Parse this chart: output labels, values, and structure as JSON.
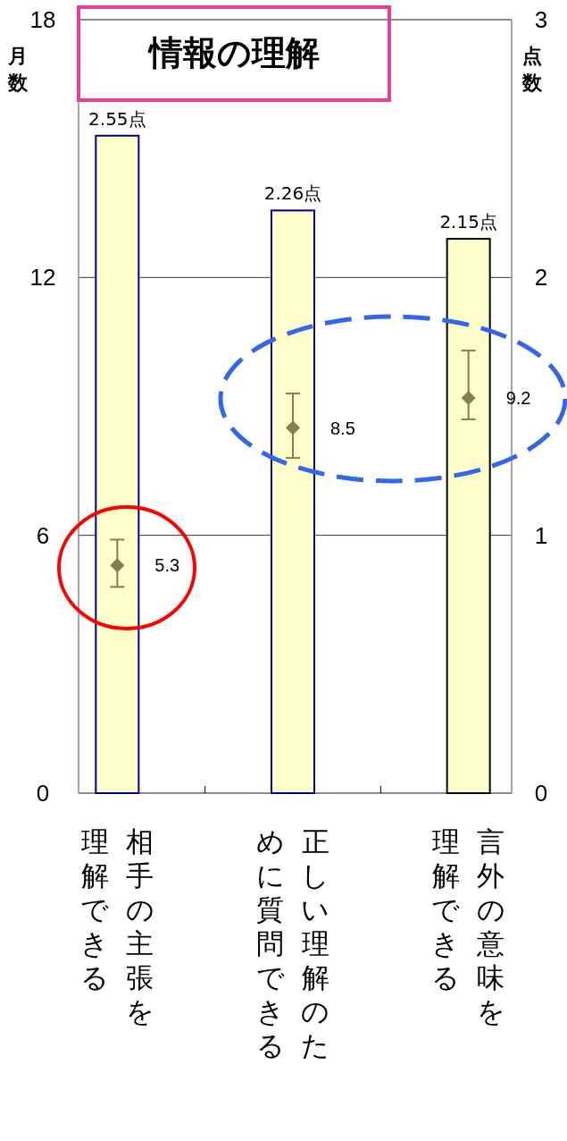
{
  "chart_data": {
    "type": "bar",
    "title": "情報の理解",
    "ylabel": "月数",
    "y2label": "点数",
    "categories": [
      "相手の主張を理解できる",
      "正しい理解のために質問できる",
      "言外の意味を理解できる"
    ],
    "series": [
      {
        "axis": "y2",
        "color": "#ffffcc",
        "values": [
          2.55,
          2.26,
          2.15
        ],
        "value_labels": [
          "2.55点",
          "2.26点",
          "2.15点"
        ]
      },
      {
        "type": "scatter",
        "axis": "y",
        "color": "#7f7f4f",
        "marker": "diamond",
        "values": [
          5.3,
          8.5,
          9.2
        ],
        "errors": [
          [
            4.8,
            5.9
          ],
          [
            7.8,
            9.3
          ],
          [
            8.7,
            10.3
          ]
        ],
        "value_labels": [
          "5.3",
          "8.5",
          "9.2"
        ]
      }
    ],
    "ylim": [
      0,
      18
    ],
    "yticks": [
      0,
      6,
      12,
      18
    ],
    "y2lim": [
      0,
      3
    ],
    "y2ticks": [
      0,
      1,
      2,
      3
    ],
    "grid": "y"
  }
}
